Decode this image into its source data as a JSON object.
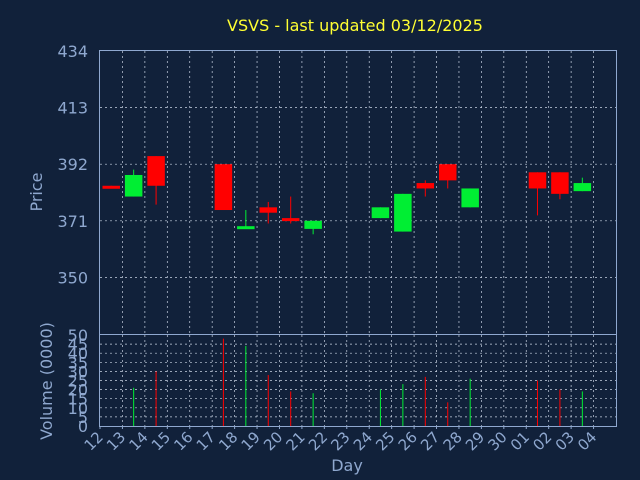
{
  "chart_data": [
    {
      "type": "candlestick",
      "title": "VSVS - last updated 03/12/2025",
      "ylabel": "Price",
      "ylim": [
        329,
        434
      ],
      "yticks": [
        434,
        413,
        392,
        371,
        350
      ],
      "grid": true,
      "colors": {
        "up": "#00ee33",
        "down": "#ff0000"
      },
      "categories": [
        "12",
        "13",
        "14",
        "15",
        "16",
        "17",
        "18",
        "19",
        "20",
        "21",
        "22",
        "23",
        "24",
        "25",
        "26",
        "27",
        "28",
        "29",
        "30",
        "01",
        "02",
        "03",
        "04"
      ],
      "candles": [
        {
          "day": "12",
          "open": 384,
          "high": 384,
          "low": 383,
          "close": 383
        },
        {
          "day": "13",
          "open": 380,
          "high": 390,
          "low": 380,
          "close": 388
        },
        {
          "day": "14",
          "open": 395,
          "high": 395,
          "low": 377,
          "close": 384
        },
        {
          "day": "17",
          "open": 392,
          "high": 392,
          "low": 375,
          "close": 375
        },
        {
          "day": "18",
          "open": 368,
          "high": 375,
          "low": 368,
          "close": 369
        },
        {
          "day": "19",
          "open": 376,
          "high": 378,
          "low": 370,
          "close": 374
        },
        {
          "day": "20",
          "open": 372,
          "high": 380,
          "low": 370,
          "close": 371
        },
        {
          "day": "21",
          "open": 368,
          "high": 371,
          "low": 366,
          "close": 371
        },
        {
          "day": "24",
          "open": 372,
          "high": 376,
          "low": 372,
          "close": 376
        },
        {
          "day": "25",
          "open": 367,
          "high": 381,
          "low": 367,
          "close": 381
        },
        {
          "day": "26",
          "open": 385,
          "high": 386,
          "low": 380,
          "close": 383
        },
        {
          "day": "27",
          "open": 392,
          "high": 392,
          "low": 383,
          "close": 386
        },
        {
          "day": "28",
          "open": 376,
          "high": 383,
          "low": 376,
          "close": 383
        },
        {
          "day": "01",
          "open": 389,
          "high": 389,
          "low": 373,
          "close": 383
        },
        {
          "day": "02",
          "open": 389,
          "high": 389,
          "low": 379,
          "close": 381
        },
        {
          "day": "03",
          "open": 382,
          "high": 387,
          "low": 382,
          "close": 385
        }
      ]
    },
    {
      "type": "bar",
      "ylabel": "Volume (0000)",
      "xlabel": "Day",
      "ylim": [
        0,
        50
      ],
      "yticks": [
        50,
        45,
        40,
        35,
        30,
        25,
        20,
        15,
        10,
        5,
        0
      ],
      "grid": true,
      "categories": [
        "12",
        "13",
        "14",
        "15",
        "16",
        "17",
        "18",
        "19",
        "20",
        "21",
        "22",
        "23",
        "24",
        "25",
        "26",
        "27",
        "28",
        "29",
        "30",
        "01",
        "02",
        "03",
        "04"
      ],
      "bars": [
        {
          "day": "13",
          "value": 21,
          "dir": "up"
        },
        {
          "day": "14",
          "value": 30,
          "dir": "down"
        },
        {
          "day": "17",
          "value": 48,
          "dir": "down"
        },
        {
          "day": "18",
          "value": 44,
          "dir": "up"
        },
        {
          "day": "19",
          "value": 28,
          "dir": "down"
        },
        {
          "day": "20",
          "value": 19,
          "dir": "down"
        },
        {
          "day": "21",
          "value": 18,
          "dir": "up"
        },
        {
          "day": "24",
          "value": 20,
          "dir": "up"
        },
        {
          "day": "25",
          "value": 23,
          "dir": "up"
        },
        {
          "day": "26",
          "value": 27,
          "dir": "down"
        },
        {
          "day": "27",
          "value": 13,
          "dir": "down"
        },
        {
          "day": "28",
          "value": 26,
          "dir": "up"
        },
        {
          "day": "01",
          "value": 25,
          "dir": "down"
        },
        {
          "day": "02",
          "value": 20,
          "dir": "down"
        },
        {
          "day": "03",
          "value": 19,
          "dir": "up"
        }
      ]
    }
  ]
}
